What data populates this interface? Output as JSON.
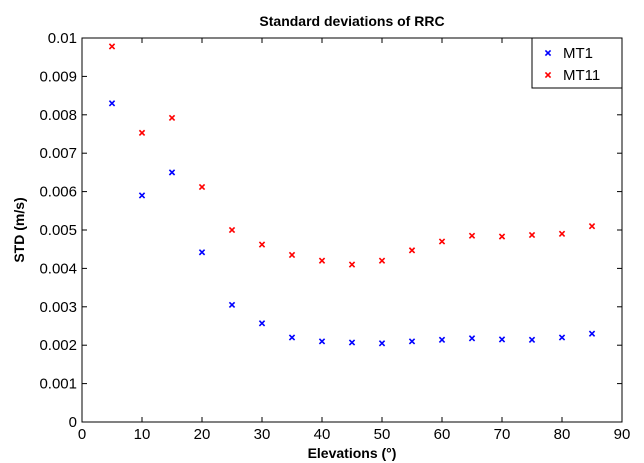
{
  "chart_data": {
    "type": "scatter",
    "title": "Standard deviations of RRC",
    "xlabel": "Elevations (°)",
    "ylabel": "STD (m/s)",
    "xlim": [
      0,
      90
    ],
    "ylim": [
      0,
      0.01
    ],
    "xticks": [
      0,
      10,
      20,
      30,
      40,
      50,
      60,
      70,
      80,
      90
    ],
    "yticks": [
      0,
      0.001,
      0.002,
      0.003,
      0.004,
      0.005,
      0.006,
      0.007,
      0.008,
      0.009,
      0.01
    ],
    "xtick_labels": [
      "0",
      "10",
      "20",
      "30",
      "40",
      "50",
      "60",
      "70",
      "80",
      "90"
    ],
    "ytick_labels": [
      "0",
      "0.001",
      "0.002",
      "0.003",
      "0.004",
      "0.005",
      "0.006",
      "0.007",
      "0.008",
      "0.009",
      "0.01"
    ],
    "grid": false,
    "legend_position": "top-right",
    "marker": "x",
    "series": [
      {
        "name": "MT1",
        "color": "#0000ff",
        "x": [
          5,
          10,
          15,
          20,
          25,
          30,
          35,
          40,
          45,
          50,
          55,
          60,
          65,
          70,
          75,
          80,
          85
        ],
        "y": [
          0.0083,
          0.0059,
          0.0065,
          0.00442,
          0.00305,
          0.00257,
          0.0022,
          0.0021,
          0.00207,
          0.00205,
          0.0021,
          0.00214,
          0.00218,
          0.00215,
          0.00214,
          0.0022,
          0.0023
        ]
      },
      {
        "name": "MT11",
        "color": "#ff0000",
        "x": [
          5,
          10,
          15,
          20,
          25,
          30,
          35,
          40,
          45,
          50,
          55,
          60,
          65,
          70,
          75,
          80,
          85
        ],
        "y": [
          0.00978,
          0.00753,
          0.00792,
          0.00612,
          0.005,
          0.00462,
          0.00435,
          0.0042,
          0.0041,
          0.0042,
          0.00447,
          0.0047,
          0.00485,
          0.00483,
          0.00487,
          0.0049,
          0.0051
        ]
      }
    ]
  }
}
